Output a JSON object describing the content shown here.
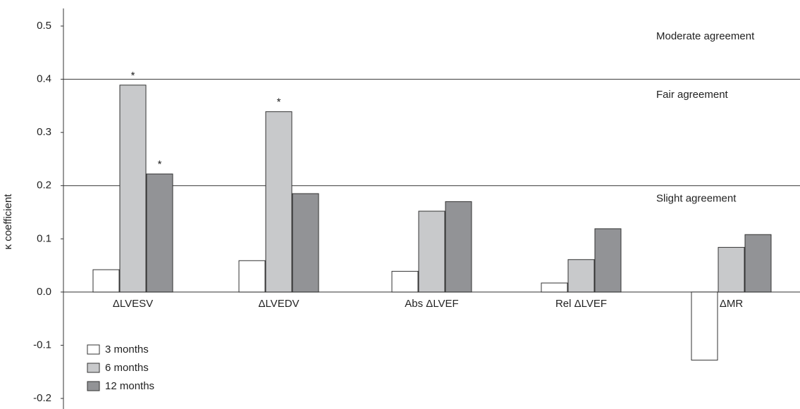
{
  "chart_data": {
    "type": "bar",
    "title": "",
    "xlabel": "",
    "ylabel": "κ coefficient",
    "ylim": [
      -0.2,
      0.5
    ],
    "yticks": [
      "0.5",
      "0.4",
      "0.3",
      "0.2",
      "0.1",
      "0.0",
      "-0.1",
      "-0.2"
    ],
    "grid": false,
    "legend_position": "bottom-left",
    "categories": [
      "ΔLVESV",
      "ΔLVEDV",
      "Abs ΔLVEF",
      "Rel ΔLVEF",
      "ΔMR"
    ],
    "series": [
      {
        "name": "3 months",
        "color": "#ffffff",
        "values": [
          0.042,
          0.059,
          0.039,
          0.017,
          -0.128
        ]
      },
      {
        "name": "6 months",
        "color": "#c8c9cb",
        "values": [
          0.389,
          0.339,
          0.152,
          0.061,
          0.084
        ]
      },
      {
        "name": "12 months",
        "color": "#929396",
        "values": [
          0.222,
          0.185,
          0.17,
          0.119,
          0.108
        ]
      }
    ],
    "significance_marker": "*",
    "significant": [
      {
        "category": "ΔLVESV",
        "series": "6 months"
      },
      {
        "category": "ΔLVESV",
        "series": "12 months"
      },
      {
        "category": "ΔLVEDV",
        "series": "6 months"
      }
    ],
    "reference_lines": [
      0.4,
      0.2
    ],
    "zones": [
      {
        "label": "Moderate agreement",
        "value": 0.48
      },
      {
        "label": "Fair agreement",
        "value": 0.37
      },
      {
        "label": "Slight agreement",
        "value": 0.175
      }
    ]
  }
}
